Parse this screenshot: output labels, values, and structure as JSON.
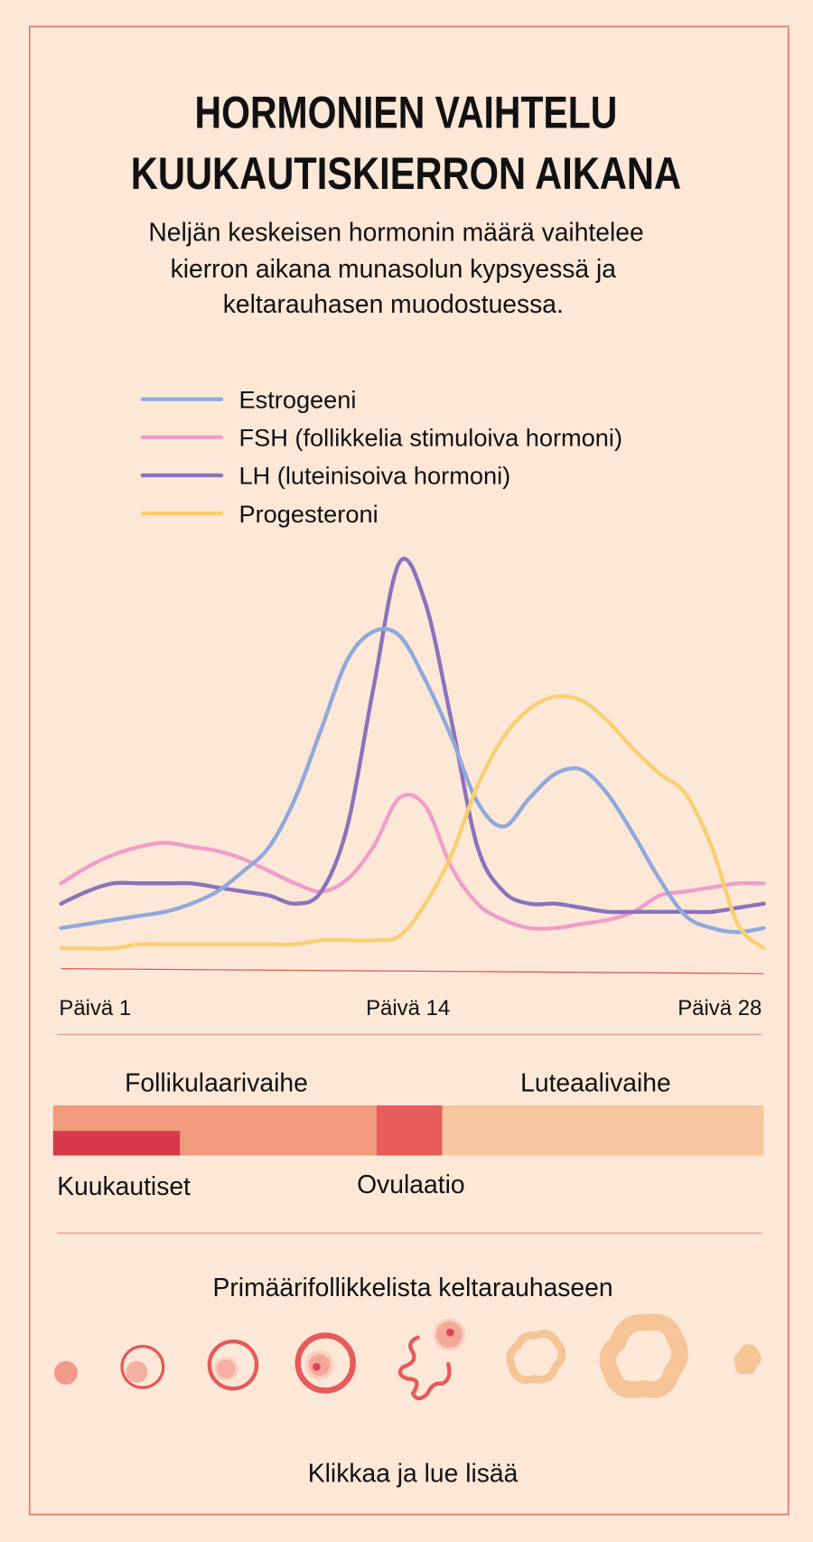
{
  "title_lines": [
    "HORMONIEN VAIHTELU",
    "KUUKAUTISKIERRON AIKANA"
  ],
  "subtitle_lines": [
    "Neljän keskeisen hormonin määrä vaihtelee",
    "kierron aikana munasolun kypsyessä ja",
    "keltarauhasen muodostuessa."
  ],
  "chart_data": {
    "type": "line",
    "title": "",
    "xlabel": "",
    "ylabel": "",
    "x": [
      1,
      2,
      3,
      4,
      5,
      6,
      7,
      8,
      9,
      10,
      11,
      12,
      13,
      14,
      15,
      16,
      17,
      18,
      19,
      20,
      21,
      22,
      23,
      24,
      25,
      26,
      27,
      28
    ],
    "x_tick_labels": [
      "Päivä 1",
      "Päivä 14",
      "Päivä 28"
    ],
    "x_ticks": [
      1,
      14,
      28
    ],
    "ylim": [
      0,
      100
    ],
    "grid": false,
    "legend_position": "top-left",
    "series": [
      {
        "name": "Estrogeeni",
        "color": "#8fa9dc",
        "values": [
          10,
          11,
          12,
          13,
          14,
          16,
          19,
          24,
          30,
          42,
          59,
          76,
          83,
          82,
          71,
          57,
          41,
          35,
          42,
          48,
          49,
          43,
          33,
          22,
          13,
          10,
          9,
          10
        ]
      },
      {
        "name": "FSH (follikkelia stimuloiva hormoni)",
        "color": "#ef9ec8",
        "values": [
          21,
          25,
          28,
          30,
          31,
          30,
          29,
          27,
          24,
          21,
          19,
          22,
          30,
          42,
          40,
          25,
          16,
          12,
          10,
          10,
          11,
          12,
          14,
          18,
          19,
          20,
          21,
          21
        ]
      },
      {
        "name": "LH (luteinisoiva hormoni)",
        "color": "#8a73ba",
        "values": [
          16,
          19,
          21,
          21,
          21,
          21,
          20,
          19,
          18,
          16,
          19,
          35,
          69,
          100,
          90,
          61,
          30,
          19,
          16,
          16,
          15,
          14,
          14,
          14,
          14,
          14,
          15,
          16
        ]
      },
      {
        "name": "Progesteroni",
        "color": "#f9cf72",
        "values": [
          5,
          5,
          5,
          6,
          6,
          6,
          6,
          6,
          6,
          6,
          7,
          7,
          7,
          8,
          16,
          28,
          45,
          57,
          64,
          67,
          66,
          61,
          54,
          48,
          43,
          30,
          11,
          5
        ]
      }
    ]
  },
  "phases": {
    "follicular": "Follikulaarivaihe",
    "luteal": "Luteaalivaihe",
    "menstruation": "Kuukautiset",
    "ovulation": "Ovulaatio",
    "colors": {
      "follicular": "#f29a7c",
      "ovulation": "#e85c5c",
      "luteal": "#f6c79e",
      "menstruation": "#d63a4a"
    }
  },
  "follicle_heading": "Primäärifollikkelista keltarauhaseen",
  "cta": "Klikkaa ja lue lisää"
}
